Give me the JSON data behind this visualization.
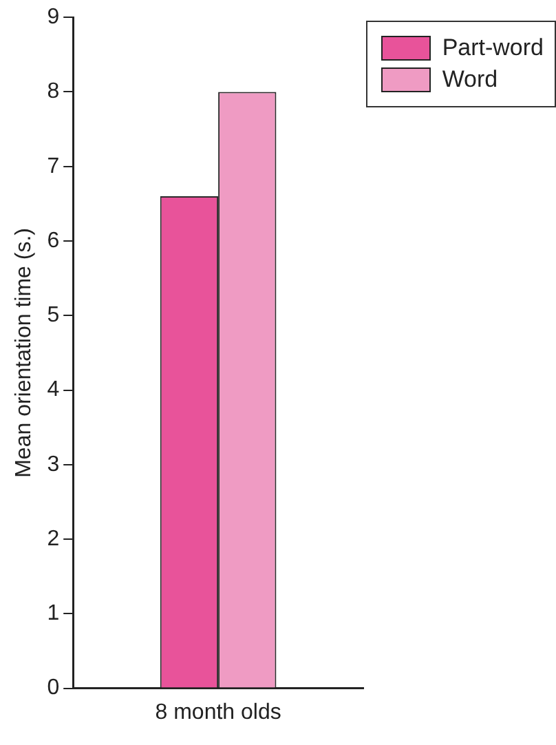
{
  "chart_data": {
    "type": "bar",
    "ylabel": "Mean orientation time (s.)",
    "categories": [
      "8 month olds"
    ],
    "series": [
      {
        "name": "Part-word",
        "color": "#e8539a",
        "values": [
          6.6
        ]
      },
      {
        "name": "Word",
        "color": "#ef9bc3",
        "values": [
          8
        ]
      }
    ],
    "ylim": [
      0,
      9
    ],
    "yticks": [
      0,
      1,
      2,
      3,
      4,
      5,
      6,
      7,
      8,
      9
    ],
    "grid": false,
    "legend": "top right"
  }
}
